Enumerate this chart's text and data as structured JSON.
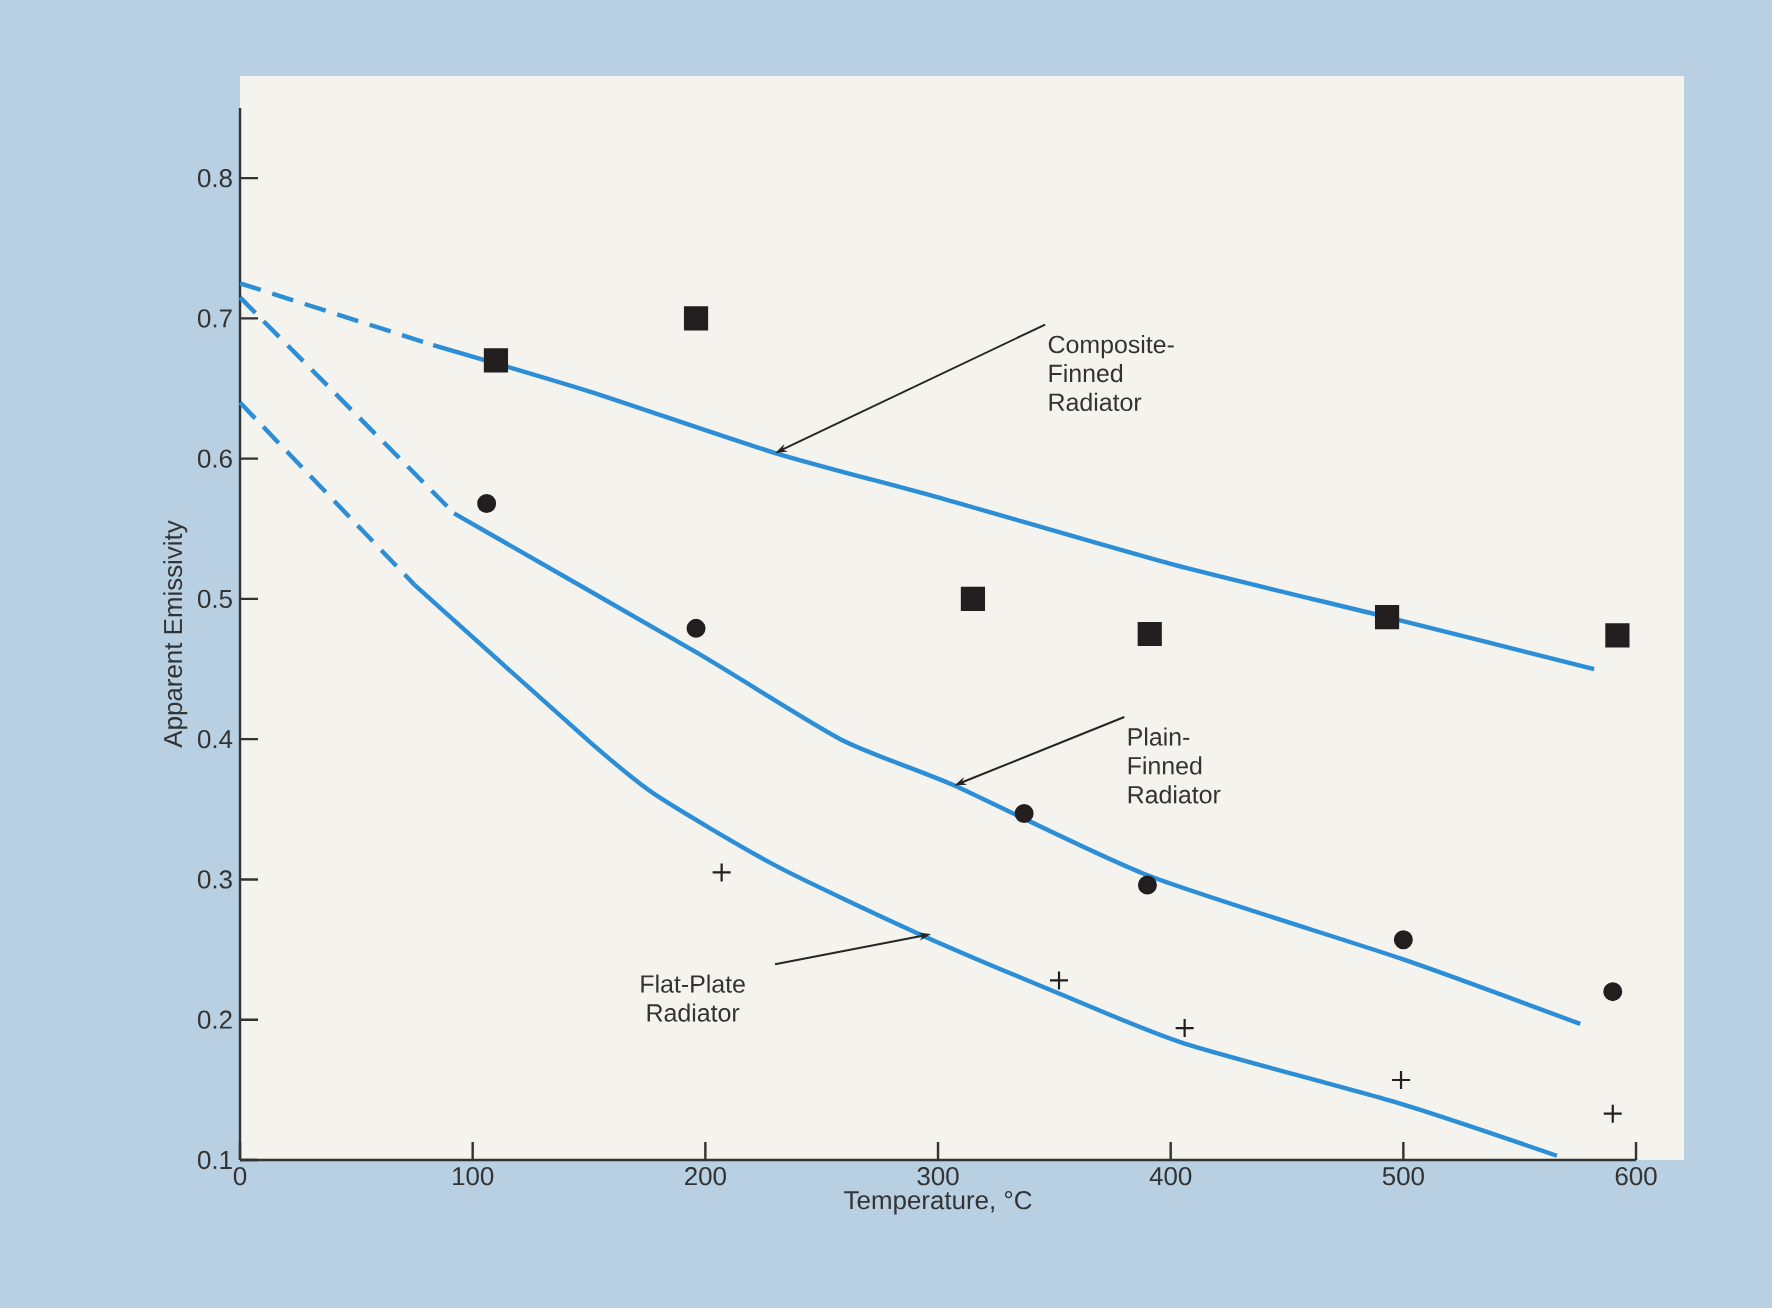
{
  "chart_data": {
    "type": "line",
    "xlabel": "Temperature, °C",
    "ylabel": "Apparent Emissivity",
    "xlim": [
      0,
      600
    ],
    "ylim": [
      0.1,
      0.85
    ],
    "xticks": [
      0,
      100,
      200,
      300,
      400,
      500,
      600
    ],
    "yticks": [
      0.1,
      0.2,
      0.3,
      0.4,
      0.5,
      0.6,
      0.7,
      0.8
    ],
    "series": [
      {
        "type": "scatter",
        "marker": "square",
        "color": "#231f20",
        "x": [
          110,
          196,
          315,
          391,
          493,
          592
        ],
        "values": [
          0.67,
          0.7,
          0.5,
          0.475,
          0.487,
          0.474
        ]
      },
      {
        "type": "scatter",
        "marker": "circle",
        "color": "#231f20",
        "x": [
          106,
          196,
          337,
          390,
          500,
          590
        ],
        "values": [
          0.568,
          0.479,
          0.347,
          0.296,
          0.257,
          0.22
        ]
      },
      {
        "type": "scatter",
        "marker": "cross",
        "color": "#231f20",
        "x": [
          207,
          352,
          406,
          499,
          590
        ],
        "values": [
          0.305,
          0.228,
          0.194,
          0.157,
          0.133
        ]
      },
      {
        "line_style": "dashed",
        "color": "#2b8ed6",
        "x": [
          0,
          83
        ],
        "values": [
          0.725,
          0.681
        ]
      },
      {
        "line_style": "solid",
        "color": "#2b8ed6",
        "x": [
          83,
          150,
          230,
          303,
          400,
          493,
          582
        ],
        "values": [
          0.681,
          0.648,
          0.604,
          0.571,
          0.525,
          0.487,
          0.45
        ]
      },
      {
        "line_style": "dashed",
        "color": "#2b8ed6",
        "x": [
          0,
          92
        ],
        "values": [
          0.715,
          0.561
        ]
      },
      {
        "line_style": "solid",
        "color": "#2b8ed6",
        "x": [
          92,
          196,
          258,
          307,
          390,
          500,
          576
        ],
        "values": [
          0.561,
          0.462,
          0.4,
          0.367,
          0.303,
          0.243,
          0.197
        ]
      },
      {
        "line_style": "dashed",
        "color": "#2b8ed6",
        "x": [
          0,
          75
        ],
        "values": [
          0.64,
          0.51
        ]
      },
      {
        "line_style": "solid",
        "color": "#2b8ed6",
        "x": [
          75,
          149,
          178,
          230,
          292,
          353,
          406,
          499,
          566
        ],
        "values": [
          0.51,
          0.4,
          0.361,
          0.31,
          0.261,
          0.218,
          0.183,
          0.14,
          0.103
        ]
      }
    ],
    "annotations": [
      {
        "text": "Composite-Finned Radiator",
        "x": 230,
        "y": 0.604
      },
      {
        "text": "Plain-Finned Radiator",
        "x": 307,
        "y": 0.367
      },
      {
        "text": "Flat-Plate Radiator",
        "x": 297,
        "y": 0.261
      }
    ]
  }
}
